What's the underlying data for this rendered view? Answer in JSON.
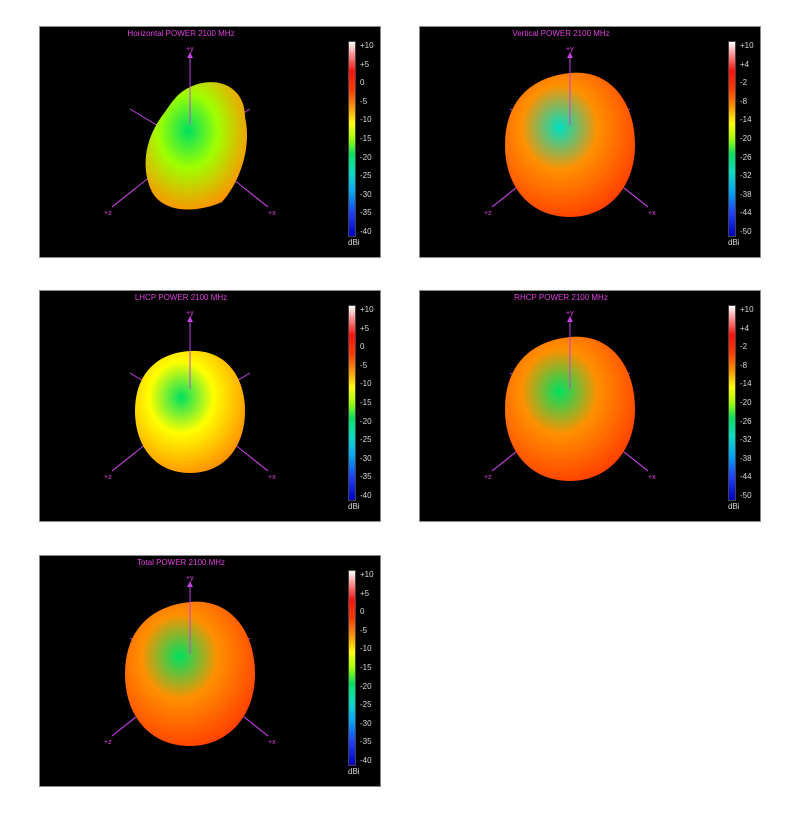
{
  "chart_data": [
    {
      "type": "3d-radiation-pattern",
      "title": "Horizontal POWER 2100  MHz",
      "colorbar_ticks": [
        "+10",
        "+5",
        "0",
        "-5",
        "-10",
        "-15",
        "-20",
        "-25",
        "-30",
        "-35",
        "-40"
      ],
      "colorbar_unit": "dBi",
      "colorbar_range": [
        -40,
        10
      ],
      "axis_labels": {
        "y": "+y",
        "z": "+z",
        "x": "+x"
      },
      "surface_levels_dbi": {
        "edge": -4,
        "mid": -12,
        "center": -18
      },
      "shape": "irregular"
    },
    {
      "type": "3d-radiation-pattern",
      "title": "Vertical POWER 2100  MHz",
      "colorbar_ticks": [
        "+10",
        "+4",
        "-2",
        "-8",
        "-14",
        "-20",
        "-26",
        "-32",
        "-38",
        "-44",
        "-50"
      ],
      "colorbar_unit": "dBi",
      "colorbar_range": [
        -50,
        10
      ],
      "axis_labels": {
        "y": "+y",
        "z": "+z",
        "x": "+x"
      },
      "surface_levels_dbi": {
        "edge": 0,
        "mid": -6,
        "center": -26
      },
      "shape": "round"
    },
    {
      "type": "3d-radiation-pattern",
      "title": "LHCP POWER 2100  MHz",
      "colorbar_ticks": [
        "+10",
        "+5",
        "0",
        "-5",
        "-10",
        "-15",
        "-20",
        "-25",
        "-30",
        "-35",
        "-40"
      ],
      "colorbar_unit": "dBi",
      "colorbar_range": [
        -40,
        10
      ],
      "axis_labels": {
        "y": "+y",
        "z": "+z",
        "x": "+x"
      },
      "surface_levels_dbi": {
        "edge": -5,
        "mid": -8,
        "center": -16
      },
      "shape": "oval"
    },
    {
      "type": "3d-radiation-pattern",
      "title": "RHCP POWER 2100  MHz",
      "colorbar_ticks": [
        "+10",
        "+4",
        "-2",
        "-8",
        "-14",
        "-20",
        "-26",
        "-32",
        "-38",
        "-44",
        "-50"
      ],
      "colorbar_unit": "dBi",
      "colorbar_range": [
        -50,
        10
      ],
      "axis_labels": {
        "y": "+y",
        "z": "+z",
        "x": "+x"
      },
      "surface_levels_dbi": {
        "edge": -2,
        "mid": -8,
        "center": -22
      },
      "shape": "round"
    },
    {
      "type": "3d-radiation-pattern",
      "title": "Total POWER 2100  MHz",
      "colorbar_ticks": [
        "+10",
        "+5",
        "0",
        "-5",
        "-10",
        "-15",
        "-20",
        "-25",
        "-30",
        "-35",
        "-40"
      ],
      "colorbar_unit": "dBi",
      "colorbar_range": [
        -40,
        10
      ],
      "axis_labels": {
        "y": "+y",
        "z": "+z",
        "x": "+x"
      },
      "surface_levels_dbi": {
        "edge": 0,
        "mid": -5,
        "center": -16
      },
      "shape": "round"
    }
  ]
}
